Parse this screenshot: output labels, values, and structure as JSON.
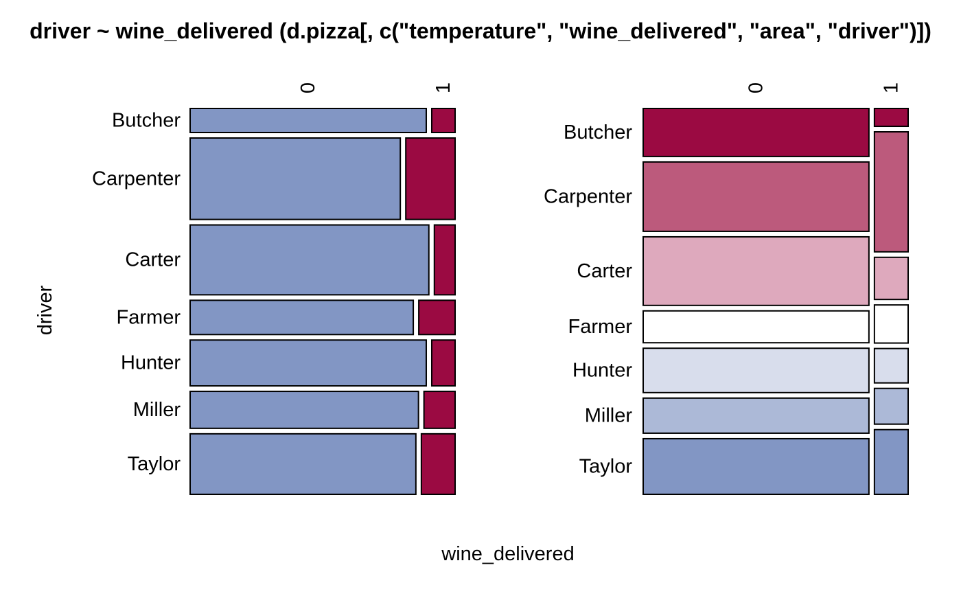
{
  "chart_data": {
    "type": "mosaic",
    "title": "driver ~ wine_delivered (d.pizza[, c(\"temperature\", \"wine_delivered\", \"area\", \"driver\")])",
    "xlabel": "wine_delivered",
    "ylabel": "driver",
    "drivers": [
      "Butcher",
      "Carpenter",
      "Carter",
      "Farmer",
      "Hunter",
      "Miller",
      "Taylor"
    ],
    "wine_delivered_levels": [
      "0",
      "1"
    ],
    "colors": {
      "level_0": "#8296C4",
      "level_1": "#9B0A42",
      "driver_gradient": [
        "#9B0A42",
        "#BC5A7C",
        "#DEA9BD",
        "#FFFFFF",
        "#D8DDEC",
        "#ACB9D7",
        "#8296C4"
      ],
      "border": "#000000"
    },
    "panels": [
      {
        "name": "left",
        "description_of_encoding": "row height = share of driver; within row, width split by wine_delivered",
        "driver_share": [
          0.054,
          0.183,
          0.157,
          0.077,
          0.103,
          0.083,
          0.136
        ],
        "wine1_share_within_driver": [
          0.09,
          0.19,
          0.08,
          0.14,
          0.09,
          0.12,
          0.13
        ]
      },
      {
        "name": "right",
        "description_of_encoding": "column width = share of wine_delivered; within column, height split by driver",
        "wine_share": [
          0.87,
          0.13
        ],
        "driver_share_within_wine": [
          [
            0.119,
            0.172,
            0.17,
            0.079,
            0.11,
            0.087,
            0.138
          ],
          [
            0.053,
            0.356,
            0.125,
            0.113,
            0.102,
            0.106,
            0.192
          ]
        ]
      }
    ]
  }
}
